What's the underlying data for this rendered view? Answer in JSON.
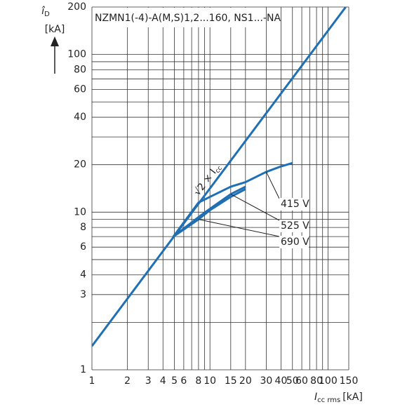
{
  "chart_data": {
    "type": "line",
    "title": "NZMN1(-4)-A(M,S)1,2...160, NS1...-NA",
    "y_label": {
      "symbol": "î",
      "sub": "D",
      "unit": "[kA]"
    },
    "x_label": {
      "symbol": "I",
      "sub": "cc rms",
      "unit": "[kA]"
    },
    "log_x": true,
    "log_y": true,
    "grid": true,
    "color": "#1f6fb2",
    "xlim": [
      1,
      150
    ],
    "ylim": [
      1,
      200
    ],
    "xticks": [
      1,
      2,
      3,
      4,
      5,
      6,
      8,
      10,
      15,
      20,
      30,
      40,
      50,
      60,
      80,
      100,
      150
    ],
    "xgrid": [
      1,
      2,
      3,
      4,
      5,
      6,
      7,
      8,
      9,
      10,
      15,
      20,
      30,
      40,
      50,
      60,
      70,
      80,
      90,
      100,
      150
    ],
    "yticks": [
      1,
      3,
      4,
      6,
      8,
      10,
      20,
      40,
      60,
      80,
      100,
      200
    ],
    "ygrid": [
      1,
      2,
      3,
      4,
      5,
      6,
      7,
      8,
      9,
      10,
      20,
      30,
      40,
      50,
      60,
      70,
      80,
      90,
      100,
      200
    ],
    "reference_line": {
      "label": {
        "text": "√2 × I",
        "sub": "cc"
      },
      "x": [
        1,
        141.4
      ],
      "values": [
        1.414,
        200
      ]
    },
    "series": [
      {
        "name": "415 V",
        "x": [
          4.9,
          8,
          10,
          15,
          20,
          30,
          40,
          50
        ],
        "values": [
          7,
          11.5,
          12.5,
          14.5,
          15.5,
          18,
          19.5,
          20.5
        ]
      },
      {
        "name": "525 V",
        "x": [
          4.9,
          8,
          10,
          15,
          20
        ],
        "values": [
          7,
          9.3,
          10.5,
          13,
          14.5
        ]
      },
      {
        "name": "690 V",
        "x": [
          4.9,
          8,
          10,
          15,
          20
        ],
        "values": [
          7,
          9,
          10.3,
          12.5,
          14
        ]
      }
    ]
  }
}
